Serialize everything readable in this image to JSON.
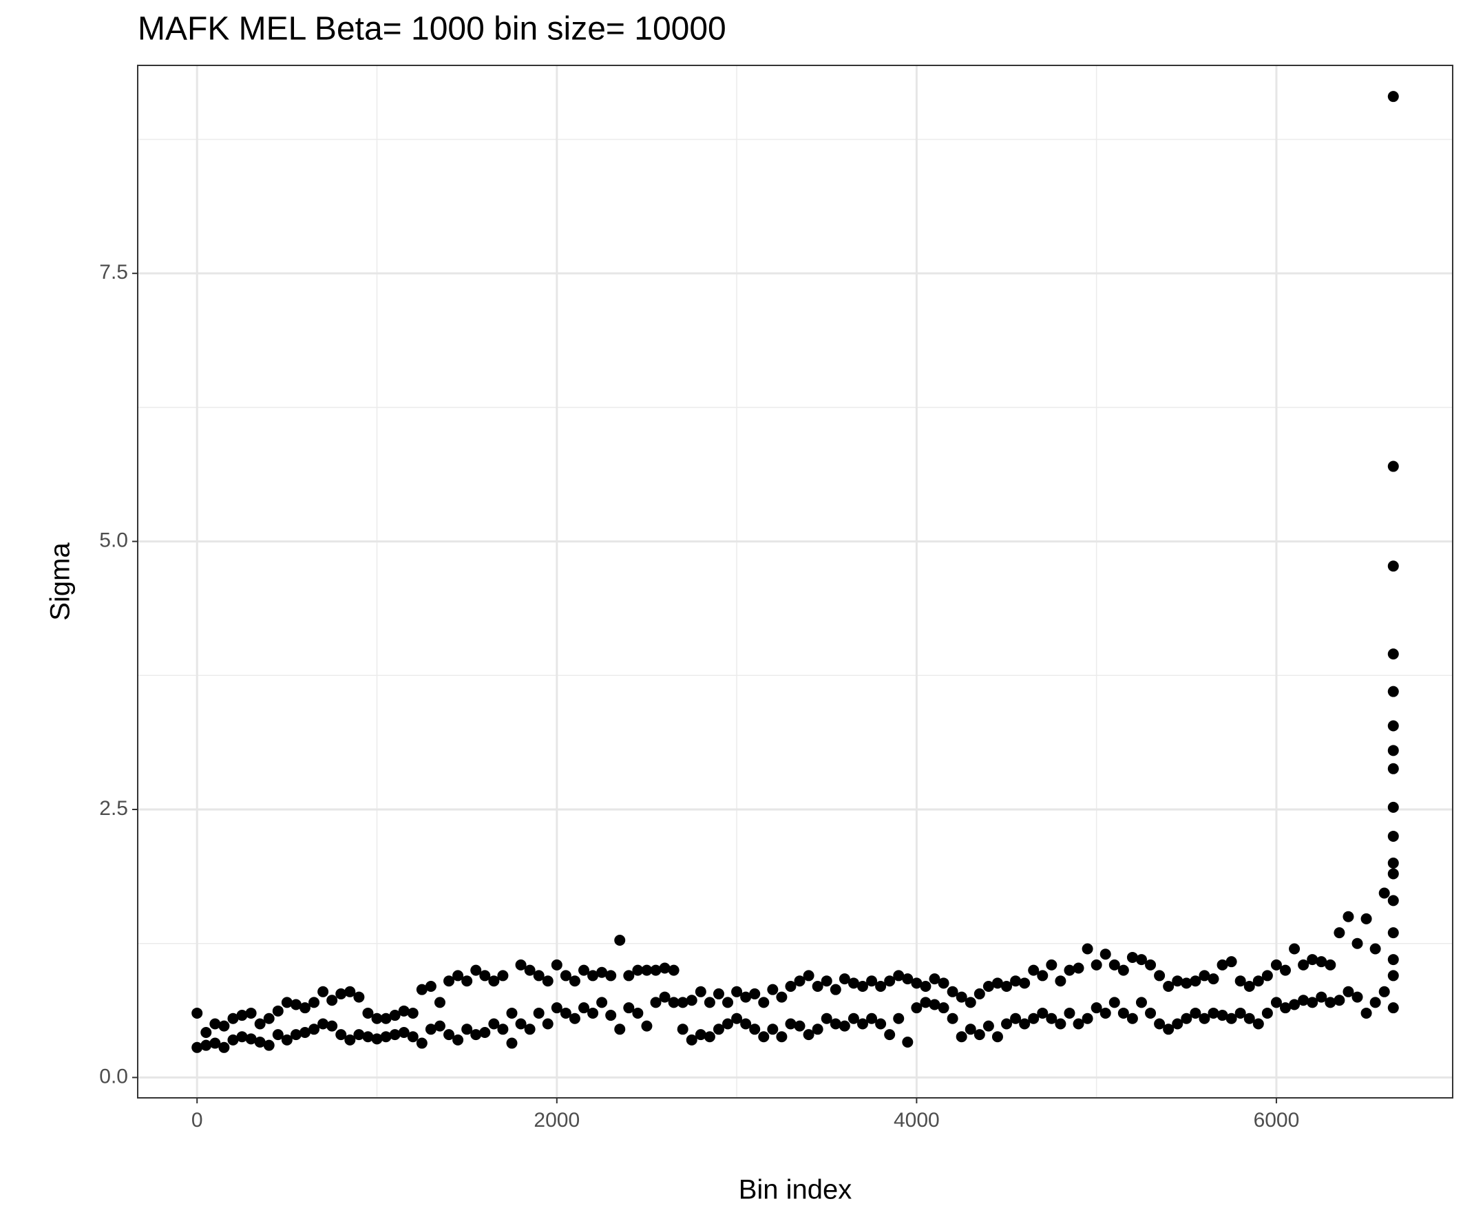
{
  "chart_data": {
    "type": "scatter",
    "title": "MAFK MEL  Beta=  1000  bin size=  10000",
    "x_label": "Bin index",
    "y_label": "Sigma",
    "color": "#000000",
    "grid": true,
    "xlim": [
      -330,
      6980
    ],
    "ylim": [
      -0.19,
      9.44
    ],
    "xticks": [
      0,
      2000,
      4000,
      6000
    ],
    "yticks": [
      {
        "value": 0,
        "label": "0.0"
      },
      2.5,
      {
        "value": 5,
        "label": "5.0"
      },
      7.5
    ],
    "x": [
      0,
      0,
      50,
      50,
      100,
      100,
      150,
      150,
      200,
      200,
      250,
      250,
      300,
      300,
      350,
      350,
      400,
      400,
      450,
      450,
      500,
      500,
      550,
      550,
      600,
      600,
      650,
      650,
      700,
      700,
      750,
      750,
      800,
      800,
      850,
      850,
      900,
      900,
      950,
      950,
      1000,
      1000,
      1050,
      1050,
      1100,
      1100,
      1150,
      1150,
      1200,
      1200,
      1250,
      1250,
      1300,
      1300,
      1350,
      1350,
      1400,
      1400,
      1450,
      1450,
      1500,
      1500,
      1550,
      1550,
      1600,
      1600,
      1650,
      1650,
      1700,
      1700,
      1750,
      1750,
      1800,
      1800,
      1850,
      1850,
      1900,
      1900,
      1950,
      1950,
      2000,
      2000,
      2050,
      2050,
      2100,
      2100,
      2150,
      2150,
      2200,
      2200,
      2250,
      2250,
      2300,
      2300,
      2350,
      2350,
      2400,
      2400,
      2450,
      2450,
      2500,
      2500,
      2550,
      2550,
      2600,
      2600,
      2650,
      2650,
      2700,
      2700,
      2750,
      2750,
      2800,
      2800,
      2850,
      2850,
      2900,
      2900,
      2950,
      2950,
      3000,
      3000,
      3050,
      3050,
      3100,
      3100,
      3150,
      3150,
      3200,
      3200,
      3250,
      3250,
      3300,
      3300,
      3350,
      3350,
      3400,
      3400,
      3450,
      3450,
      3500,
      3500,
      3550,
      3550,
      3600,
      3600,
      3650,
      3650,
      3700,
      3700,
      3750,
      3750,
      3800,
      3800,
      3850,
      3850,
      3900,
      3900,
      3950,
      3950,
      4000,
      4000,
      4050,
      4050,
      4100,
      4100,
      4150,
      4150,
      4200,
      4200,
      4250,
      4250,
      4300,
      4300,
      4350,
      4350,
      4400,
      4400,
      4450,
      4450,
      4500,
      4500,
      4550,
      4550,
      4600,
      4600,
      4650,
      4650,
      4700,
      4700,
      4750,
      4750,
      4800,
      4800,
      4850,
      4850,
      4900,
      4900,
      4950,
      4950,
      5000,
      5000,
      5050,
      5050,
      5100,
      5100,
      5150,
      5150,
      5200,
      5200,
      5250,
      5250,
      5300,
      5300,
      5350,
      5350,
      5400,
      5400,
      5450,
      5450,
      5500,
      5500,
      5550,
      5550,
      5600,
      5600,
      5650,
      5650,
      5700,
      5700,
      5750,
      5750,
      5800,
      5800,
      5850,
      5850,
      5900,
      5900,
      5950,
      5950,
      6000,
      6000,
      6050,
      6050,
      6100,
      6100,
      6150,
      6150,
      6200,
      6200,
      6250,
      6250,
      6300,
      6300,
      6350,
      6350,
      6400,
      6400,
      6450,
      6450,
      6500,
      6500,
      6550,
      6550,
      6600,
      6600,
      6650,
      6650,
      6650,
      6650,
      6650,
      6650,
      6650,
      6650,
      6650,
      6650,
      6650,
      6650,
      6650,
      6650,
      6650,
      6650,
      6650
    ],
    "values": [
      0.28,
      0.6,
      0.3,
      0.42,
      0.32,
      0.5,
      0.28,
      0.48,
      0.35,
      0.55,
      0.38,
      0.58,
      0.36,
      0.6,
      0.33,
      0.5,
      0.3,
      0.55,
      0.4,
      0.62,
      0.35,
      0.7,
      0.4,
      0.68,
      0.42,
      0.65,
      0.45,
      0.7,
      0.5,
      0.8,
      0.48,
      0.72,
      0.4,
      0.78,
      0.35,
      0.8,
      0.4,
      0.75,
      0.38,
      0.6,
      0.36,
      0.55,
      0.38,
      0.55,
      0.4,
      0.58,
      0.42,
      0.62,
      0.38,
      0.6,
      0.32,
      0.82,
      0.45,
      0.85,
      0.48,
      0.7,
      0.4,
      0.9,
      0.35,
      0.95,
      0.45,
      0.9,
      0.4,
      1.0,
      0.42,
      0.95,
      0.5,
      0.9,
      0.45,
      0.95,
      0.32,
      0.6,
      0.5,
      1.05,
      0.45,
      1.0,
      0.6,
      0.95,
      0.5,
      0.9,
      0.65,
      1.05,
      0.6,
      0.95,
      0.55,
      0.9,
      0.65,
      1.0,
      0.6,
      0.95,
      0.7,
      0.98,
      0.58,
      0.95,
      0.45,
      1.28,
      0.65,
      0.95,
      0.6,
      1.0,
      0.48,
      1.0,
      0.7,
      1.0,
      0.75,
      1.02,
      0.7,
      1.0,
      0.45,
      0.7,
      0.35,
      0.72,
      0.4,
      0.8,
      0.38,
      0.7,
      0.45,
      0.78,
      0.5,
      0.7,
      0.55,
      0.8,
      0.5,
      0.75,
      0.45,
      0.78,
      0.38,
      0.7,
      0.45,
      0.82,
      0.38,
      0.75,
      0.5,
      0.85,
      0.48,
      0.9,
      0.4,
      0.95,
      0.45,
      0.85,
      0.55,
      0.9,
      0.5,
      0.82,
      0.48,
      0.92,
      0.55,
      0.88,
      0.5,
      0.85,
      0.55,
      0.9,
      0.5,
      0.85,
      0.4,
      0.9,
      0.55,
      0.95,
      0.33,
      0.92,
      0.65,
      0.88,
      0.7,
      0.85,
      0.68,
      0.92,
      0.65,
      0.88,
      0.55,
      0.8,
      0.38,
      0.75,
      0.45,
      0.7,
      0.4,
      0.78,
      0.48,
      0.85,
      0.38,
      0.88,
      0.5,
      0.85,
      0.55,
      0.9,
      0.5,
      0.88,
      0.55,
      1.0,
      0.6,
      0.95,
      0.55,
      1.05,
      0.5,
      0.9,
      0.6,
      1.0,
      0.5,
      1.02,
      0.55,
      1.2,
      0.65,
      1.05,
      0.6,
      1.15,
      0.7,
      1.05,
      0.6,
      1.0,
      0.55,
      1.12,
      0.7,
      1.1,
      0.6,
      1.05,
      0.5,
      0.95,
      0.45,
      0.85,
      0.5,
      0.9,
      0.55,
      0.88,
      0.6,
      0.9,
      0.55,
      0.95,
      0.6,
      0.92,
      0.58,
      1.05,
      0.55,
      1.08,
      0.6,
      0.9,
      0.55,
      0.85,
      0.5,
      0.9,
      0.6,
      0.95,
      0.7,
      1.05,
      0.65,
      1.0,
      0.68,
      1.2,
      0.72,
      1.05,
      0.7,
      1.1,
      0.75,
      1.08,
      0.7,
      1.05,
      0.72,
      1.35,
      0.8,
      1.5,
      0.75,
      1.25,
      0.6,
      1.48,
      0.7,
      1.2,
      0.8,
      1.72,
      0.65,
      0.95,
      1.1,
      1.35,
      1.65,
      1.9,
      2.0,
      2.25,
      2.52,
      2.88,
      3.05,
      3.28,
      3.6,
      3.95,
      4.77,
      5.7,
      9.15
    ]
  }
}
